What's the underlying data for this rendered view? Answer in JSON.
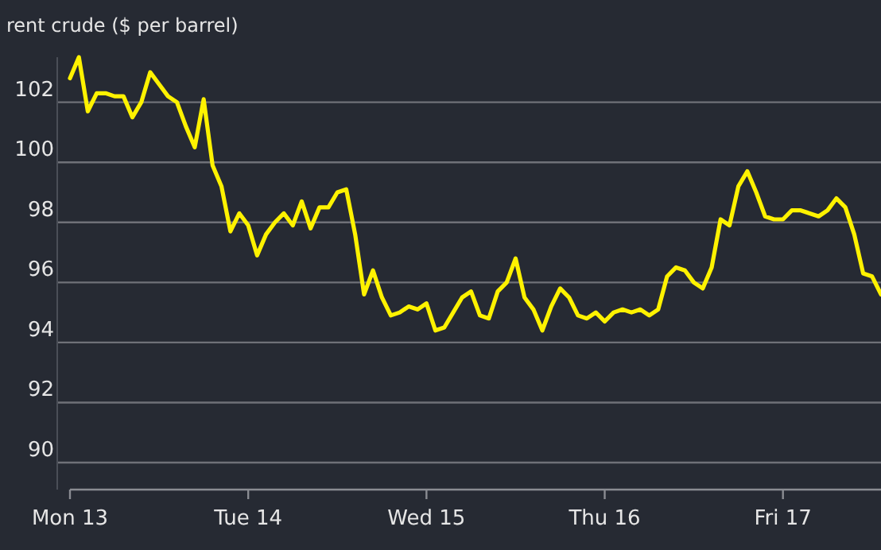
{
  "chart_data": {
    "type": "line",
    "title": "rent crude ($ per barrel)",
    "categories": [
      "Mon 13",
      null,
      null,
      null,
      null,
      null,
      null,
      null,
      null,
      null,
      null,
      null,
      null,
      null,
      null,
      null,
      null,
      null,
      null,
      null,
      "Tue 14",
      null,
      null,
      null,
      null,
      null,
      null,
      null,
      null,
      null,
      null,
      null,
      null,
      null,
      null,
      null,
      null,
      null,
      null,
      null,
      "Wed 15",
      null,
      null,
      null,
      null,
      null,
      null,
      null,
      null,
      null,
      null,
      null,
      null,
      null,
      null,
      null,
      null,
      null,
      null,
      null,
      "Thu 16",
      null,
      null,
      null,
      null,
      null,
      null,
      null,
      null,
      null,
      null,
      null,
      null,
      null,
      null,
      null,
      null,
      null,
      null,
      null,
      "Fri 17",
      null,
      null,
      null,
      null,
      null,
      null,
      null,
      null,
      null,
      null,
      null
    ],
    "series": [
      {
        "color": "#fff200",
        "values": [
          102.8,
          103.5,
          101.7,
          102.3,
          102.3,
          102.2,
          102.2,
          101.5,
          102.0,
          103.0,
          102.6,
          102.2,
          102.0,
          101.2,
          100.5,
          102.1,
          99.9,
          99.2,
          97.7,
          98.3,
          97.9,
          96.9,
          97.6,
          98.0,
          98.3,
          97.9,
          98.7,
          97.8,
          98.5,
          98.5,
          99.0,
          99.1,
          97.6,
          95.6,
          96.4,
          95.5,
          94.9,
          95.0,
          95.2,
          95.1,
          95.3,
          94.4,
          94.5,
          95.0,
          95.5,
          95.7,
          94.9,
          94.8,
          95.7,
          96.0,
          96.8,
          95.5,
          95.1,
          94.4,
          95.2,
          95.8,
          95.5,
          94.9,
          94.8,
          95.0,
          94.7,
          95.0,
          95.1,
          95.0,
          95.1,
          94.9,
          95.1,
          96.2,
          96.5,
          96.4,
          96.0,
          95.8,
          96.5,
          98.1,
          97.9,
          99.2,
          99.7,
          99.0,
          98.2,
          98.1,
          98.1,
          98.4,
          98.4,
          98.3,
          98.2,
          98.4,
          98.8,
          98.5,
          97.6,
          96.3,
          96.2,
          95.6
        ]
      }
    ],
    "ylim": [
      89.1,
      103.5
    ],
    "yticks": [
      90,
      92,
      94,
      96,
      98,
      100,
      102
    ],
    "grid": "y",
    "marker": "none",
    "line_style": "solid"
  }
}
